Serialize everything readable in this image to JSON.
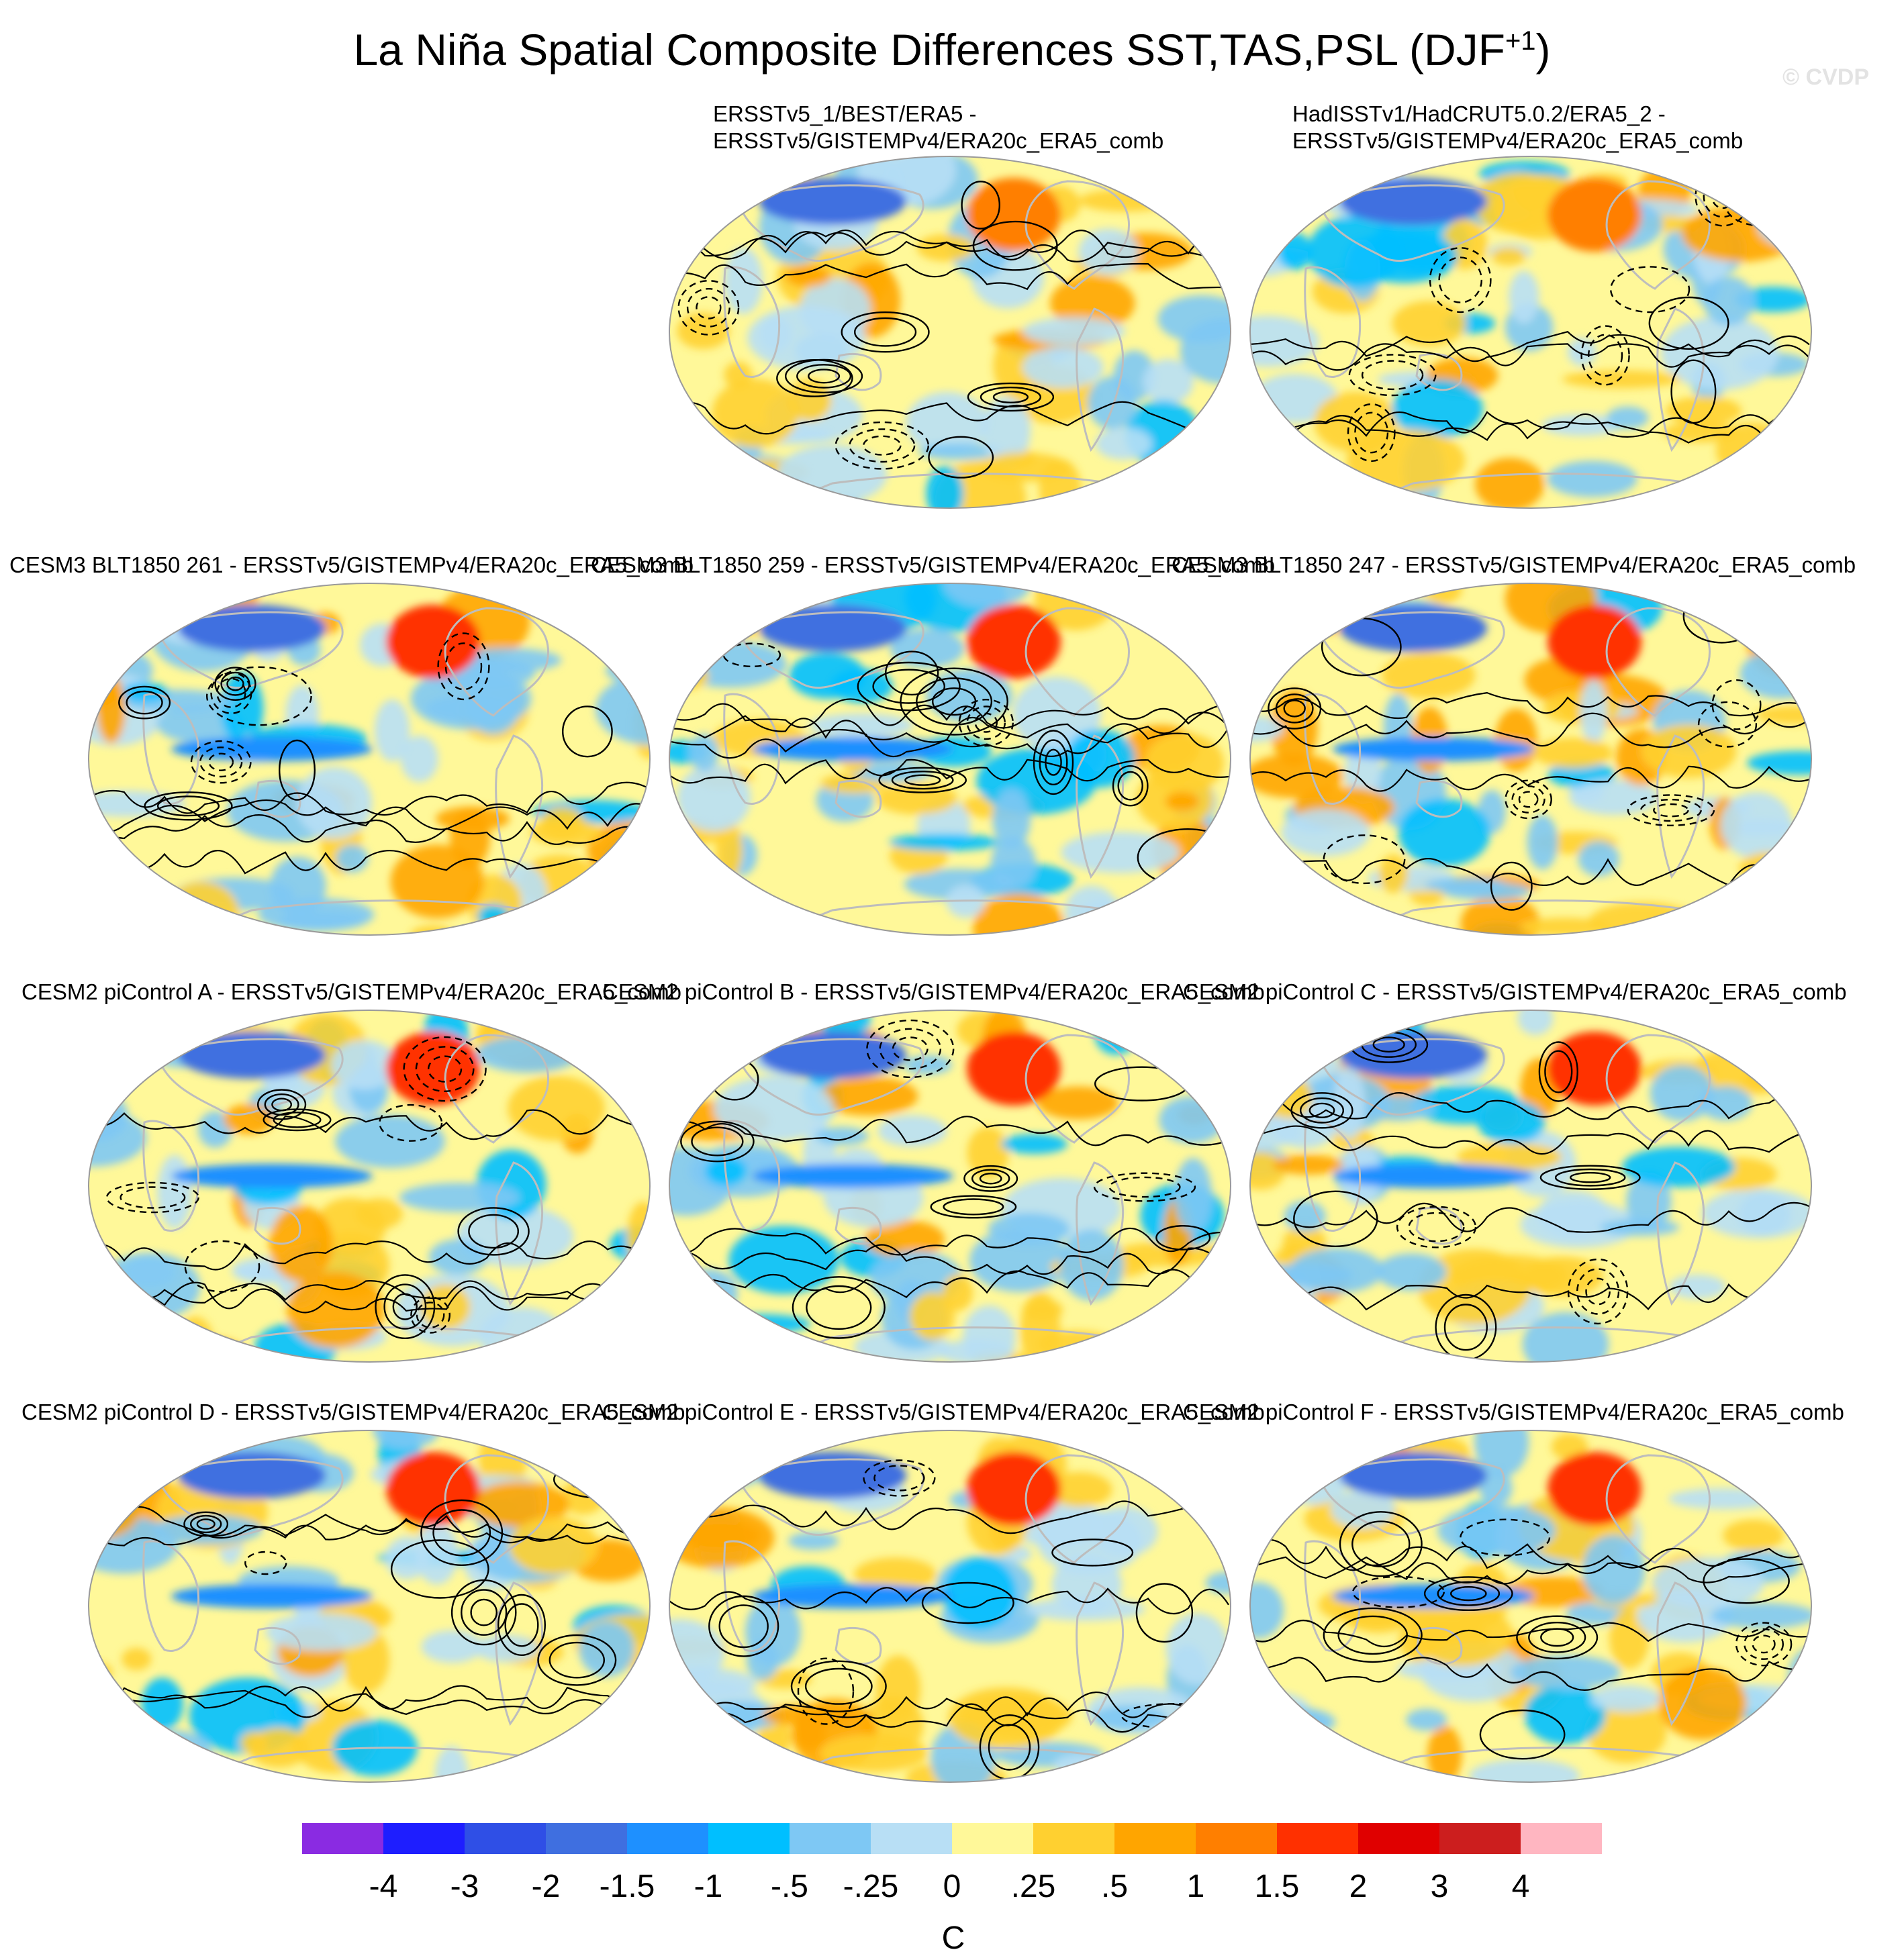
{
  "title": "La Niña Spatial Composite Differences SST,TAS,PSL (DJF",
  "title_superscript": "+1",
  "title_close": ")",
  "watermark": "© CVDP",
  "panels": [
    {
      "title_line1": "ERSSTv5_1/BEST/ERA5 -",
      "title_line2": "ERSSTv5/GISTEMPv4/ERA20c_ERA5_comb",
      "seed": 11
    },
    {
      "title_line1": "HadISSTv1/HadCRUT5.0.2/ERA5_2 -",
      "title_line2": "ERSSTv5/GISTEMPv4/ERA20c_ERA5_comb",
      "seed": 23
    },
    {
      "title_line1": "CESM3 BLT1850 261 - ERSSTv5/GISTEMPv4/ERA20c_ERA5_comb",
      "title_line2": "",
      "seed": 37
    },
    {
      "title_line1": "CESM3 BLT1850 259 - ERSSTv5/GISTEMPv4/ERA20c_ERA5_comb",
      "title_line2": "",
      "seed": 41
    },
    {
      "title_line1": "CESM3 BLT1850 247 - ERSSTv5/GISTEMPv4/ERA20c_ERA5_comb",
      "title_line2": "",
      "seed": 53
    },
    {
      "title_line1": "CESM2 piControl A - ERSSTv5/GISTEMPv4/ERA20c_ERA5_comb",
      "title_line2": "",
      "seed": 67
    },
    {
      "title_line1": "CESM2 piControl B - ERSSTv5/GISTEMPv4/ERA20c_ERA5_comb",
      "title_line2": "",
      "seed": 71
    },
    {
      "title_line1": "CESM2 piControl C - ERSSTv5/GISTEMPv4/ERA20c_ERA5_comb",
      "title_line2": "",
      "seed": 83
    },
    {
      "title_line1": "CESM2 piControl D - ERSSTv5/GISTEMPv4/ERA20c_ERA5_comb",
      "title_line2": "",
      "seed": 97
    },
    {
      "title_line1": "CESM2 piControl E - ERSSTv5/GISTEMPv4/ERA20c_ERA5_comb",
      "title_line2": "",
      "seed": 101
    },
    {
      "title_line1": "CESM2 piControl F - ERSSTv5/GISTEMPv4/ERA20c_ERA5_comb",
      "title_line2": "",
      "seed": 113
    }
  ],
  "colorbar": {
    "unit": "C",
    "labels": [
      "-4",
      "-3",
      "-2",
      "-1.5",
      "-1",
      "-.5",
      "-.25",
      "0",
      ".25",
      ".5",
      "1",
      "1.5",
      "2",
      "3",
      "4"
    ],
    "colors": [
      "#8a2be2",
      "#1e1eff",
      "#2f4fe6",
      "#3f6fe0",
      "#1e90ff",
      "#00bfff",
      "#7ec8f4",
      "#b8dff5",
      "#fff899",
      "#ffd030",
      "#ffa500",
      "#ff7f00",
      "#ff3000",
      "#e00000",
      "#cc1e1e",
      "#ffb6c1"
    ]
  }
}
